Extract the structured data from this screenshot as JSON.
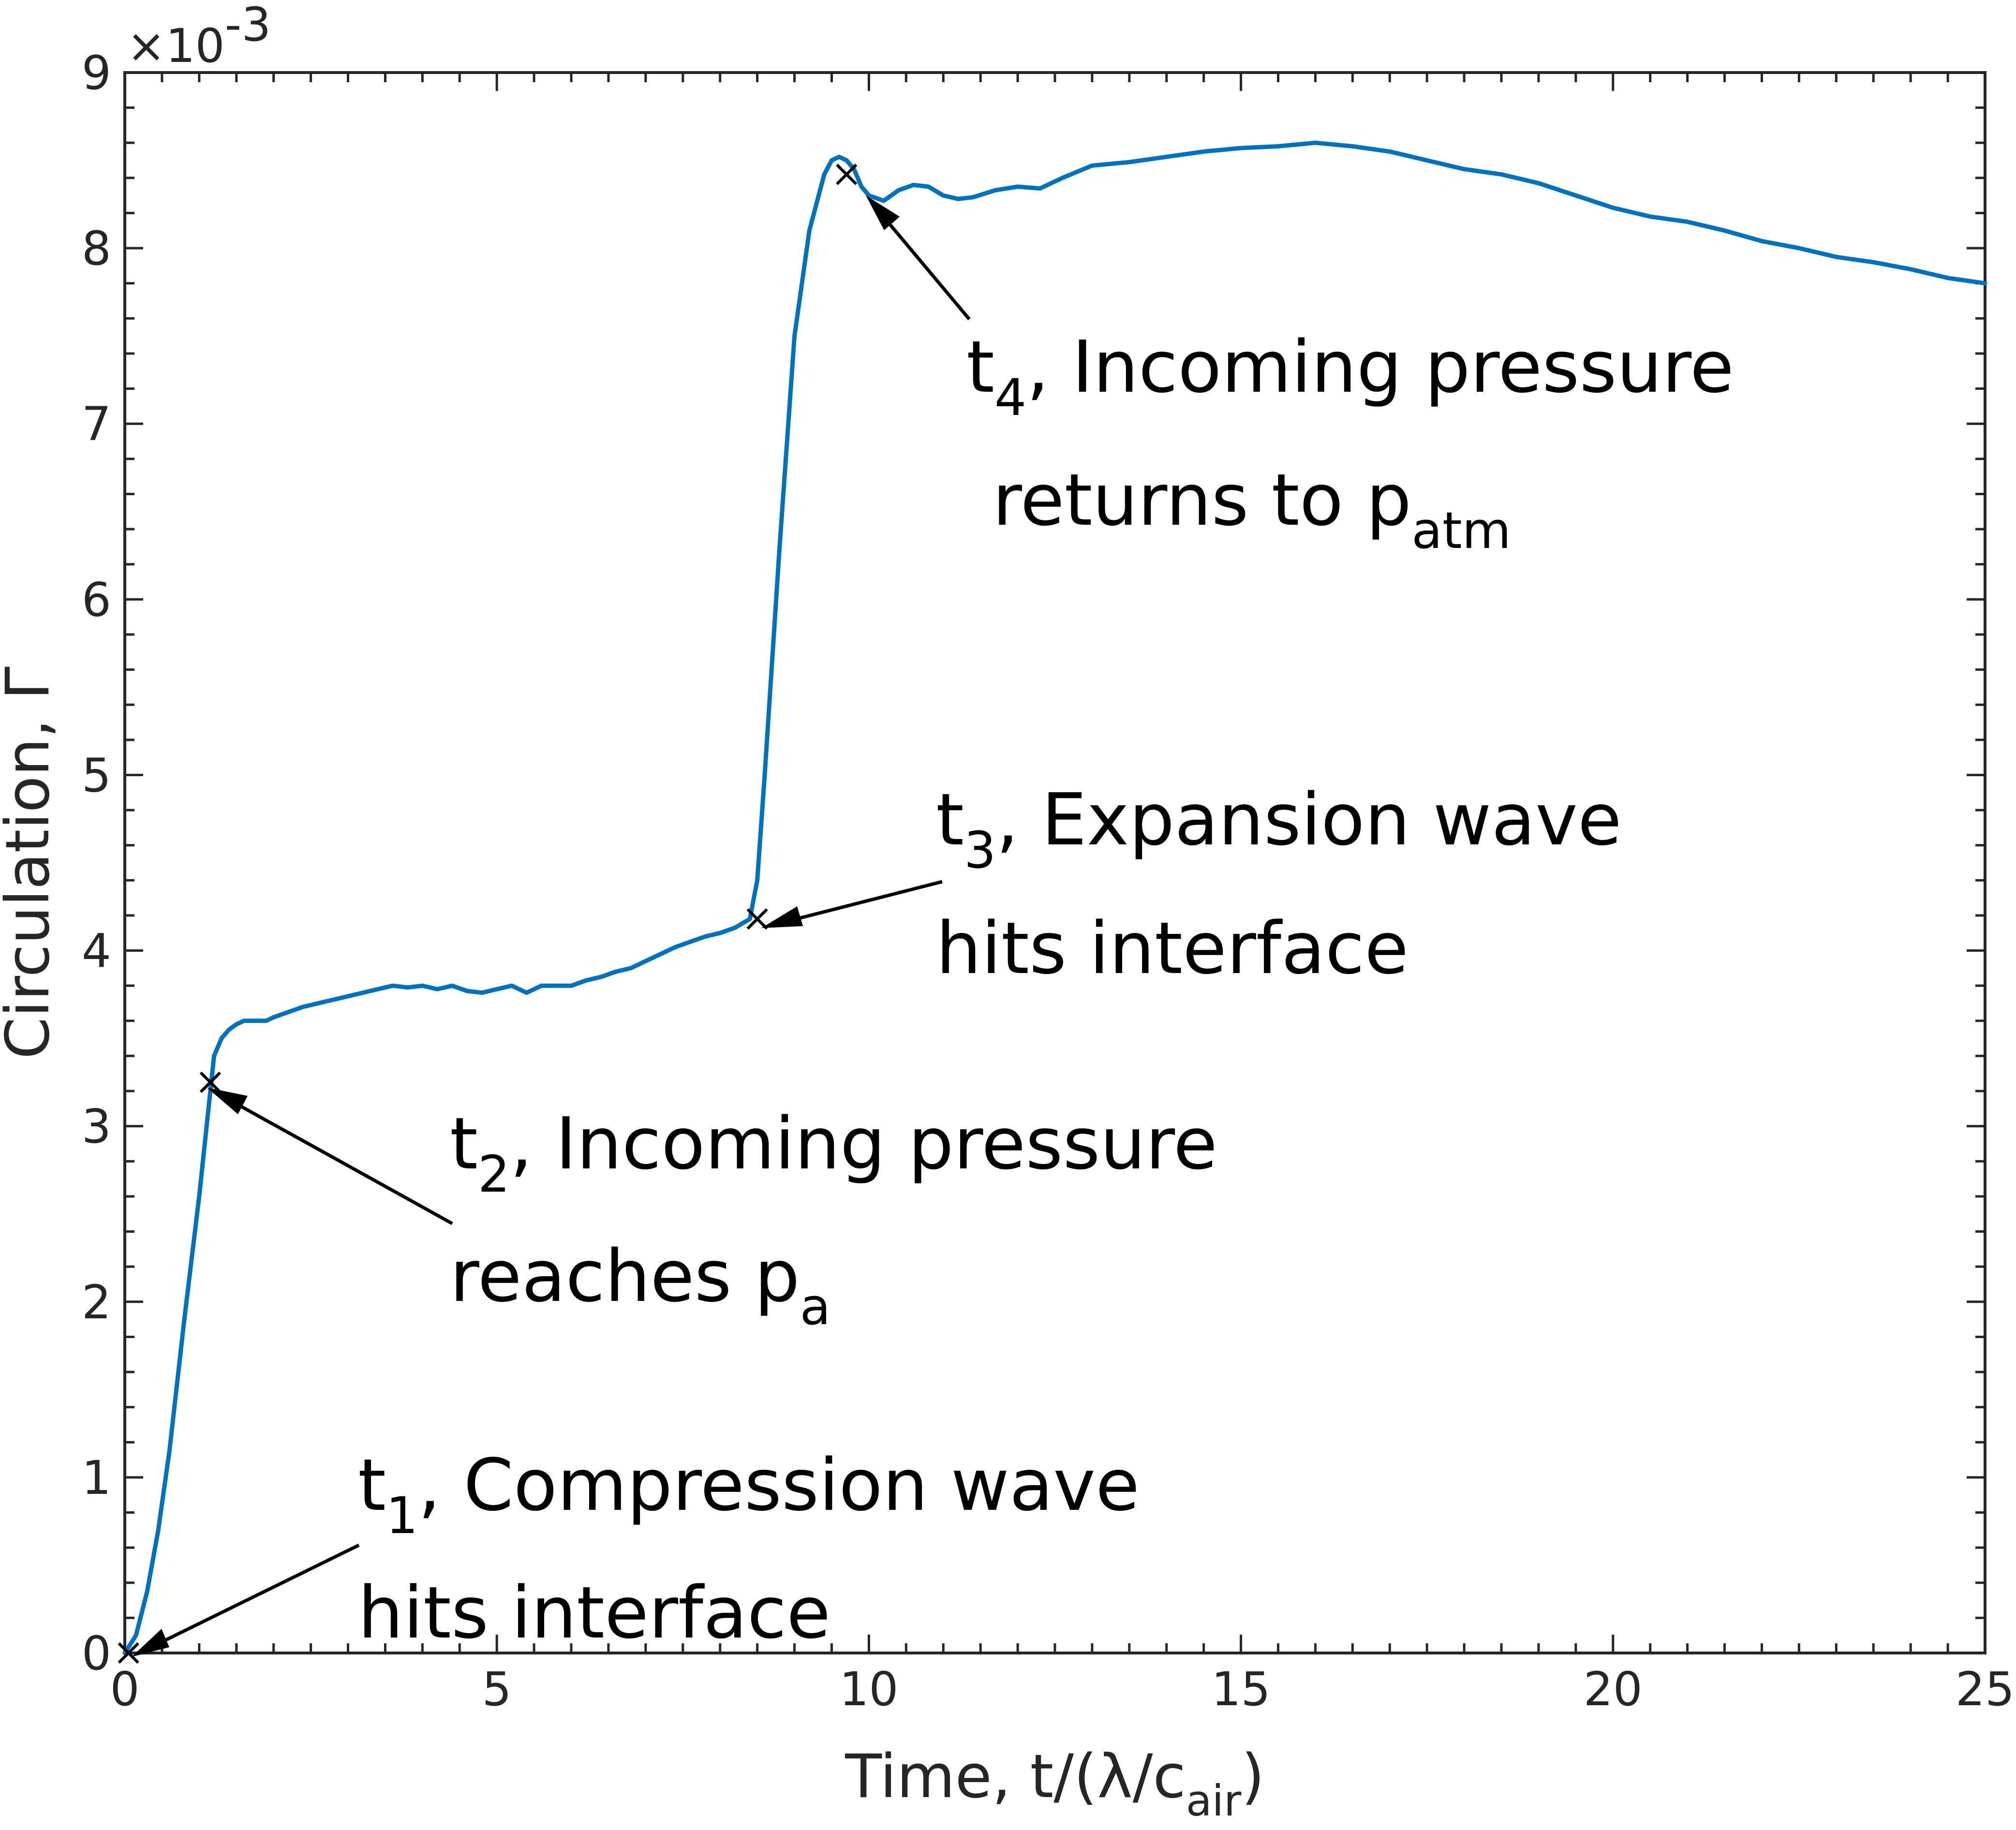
{
  "chart_data": {
    "type": "line",
    "title": "",
    "xlabel": "Time, t/(λ/c",
    "xlabel_sub": "air",
    "xlabel_close": ")",
    "ylabel": "Circulation, Γ",
    "y_exponent_label": "×10",
    "y_exponent_sup": "-3",
    "xlim": [
      0,
      25
    ],
    "ylim": [
      0,
      9
    ],
    "grid": false,
    "x_ticks": [
      "0",
      "5",
      "10",
      "15",
      "20",
      "25"
    ],
    "y_ticks": [
      "0",
      "1",
      "2",
      "3",
      "4",
      "5",
      "6",
      "7",
      "8",
      "9"
    ],
    "series": [
      {
        "color": "#0072BD",
        "x": [
          0,
          0.15,
          0.3,
          0.45,
          0.6,
          0.8,
          1.0,
          1.1,
          1.2,
          1.3,
          1.4,
          1.5,
          1.6,
          1.75,
          1.9,
          2.0,
          2.2,
          2.4,
          2.6,
          2.8,
          3.0,
          3.2,
          3.4,
          3.6,
          3.8,
          4.0,
          4.2,
          4.4,
          4.6,
          4.8,
          5.0,
          5.2,
          5.4,
          5.6,
          5.8,
          6.0,
          6.2,
          6.4,
          6.6,
          6.8,
          7.0,
          7.2,
          7.4,
          7.6,
          7.8,
          8.0,
          8.2,
          8.4,
          8.5,
          8.6,
          8.8,
          9.0,
          9.2,
          9.4,
          9.5,
          9.6,
          9.7,
          9.8,
          9.9,
          10.0,
          10.2,
          10.4,
          10.6,
          10.8,
          11.0,
          11.2,
          11.4,
          11.7,
          12.0,
          12.3,
          12.6,
          13.0,
          13.5,
          14.0,
          14.5,
          15.0,
          15.5,
          16.0,
          16.5,
          17.0,
          17.5,
          18.0,
          18.5,
          19.0,
          19.5,
          20.0,
          20.5,
          21.0,
          21.5,
          22.0,
          22.5,
          23.0,
          23.5,
          24.0,
          24.5,
          25.0
        ],
        "y": [
          0,
          0.1,
          0.35,
          0.7,
          1.15,
          1.9,
          2.6,
          3.0,
          3.4,
          3.5,
          3.55,
          3.58,
          3.6,
          3.6,
          3.6,
          3.62,
          3.65,
          3.68,
          3.7,
          3.72,
          3.74,
          3.76,
          3.78,
          3.8,
          3.79,
          3.8,
          3.78,
          3.8,
          3.77,
          3.76,
          3.78,
          3.8,
          3.76,
          3.8,
          3.8,
          3.8,
          3.83,
          3.85,
          3.88,
          3.9,
          3.94,
          3.98,
          4.02,
          4.05,
          4.08,
          4.1,
          4.13,
          4.18,
          4.4,
          5.0,
          6.3,
          7.5,
          8.1,
          8.42,
          8.5,
          8.52,
          8.5,
          8.45,
          8.35,
          8.3,
          8.27,
          8.33,
          8.36,
          8.35,
          8.3,
          8.28,
          8.29,
          8.33,
          8.35,
          8.34,
          8.4,
          8.47,
          8.49,
          8.52,
          8.55,
          8.57,
          8.58,
          8.6,
          8.58,
          8.55,
          8.5,
          8.45,
          8.42,
          8.37,
          8.3,
          8.23,
          8.18,
          8.15,
          8.1,
          8.04,
          8.0,
          7.95,
          7.92,
          7.88,
          7.83,
          7.8
        ]
      }
    ],
    "markers": [
      {
        "x": 0.05,
        "y": 0.0
      },
      {
        "x": 1.15,
        "y": 3.25
      },
      {
        "x": 8.5,
        "y": 4.18
      },
      {
        "x": 9.7,
        "y": 8.42
      }
    ],
    "annotations": [
      {
        "label": "t",
        "sub": "1",
        "rest": ", Compression wave",
        "line2": "hits interface",
        "line2_sub": ""
      },
      {
        "label": "t",
        "sub": "2",
        "rest": ", Incoming pressure",
        "line2": "reaches p",
        "line2_sub": "a"
      },
      {
        "label": "t",
        "sub": "3",
        "rest": ", Expansion wave",
        "line2": "hits interface",
        "line2_sub": ""
      },
      {
        "label": "t",
        "sub": "4",
        "rest": ", Incoming pressure",
        "line2": "returns to p",
        "line2_sub": "atm"
      }
    ]
  }
}
